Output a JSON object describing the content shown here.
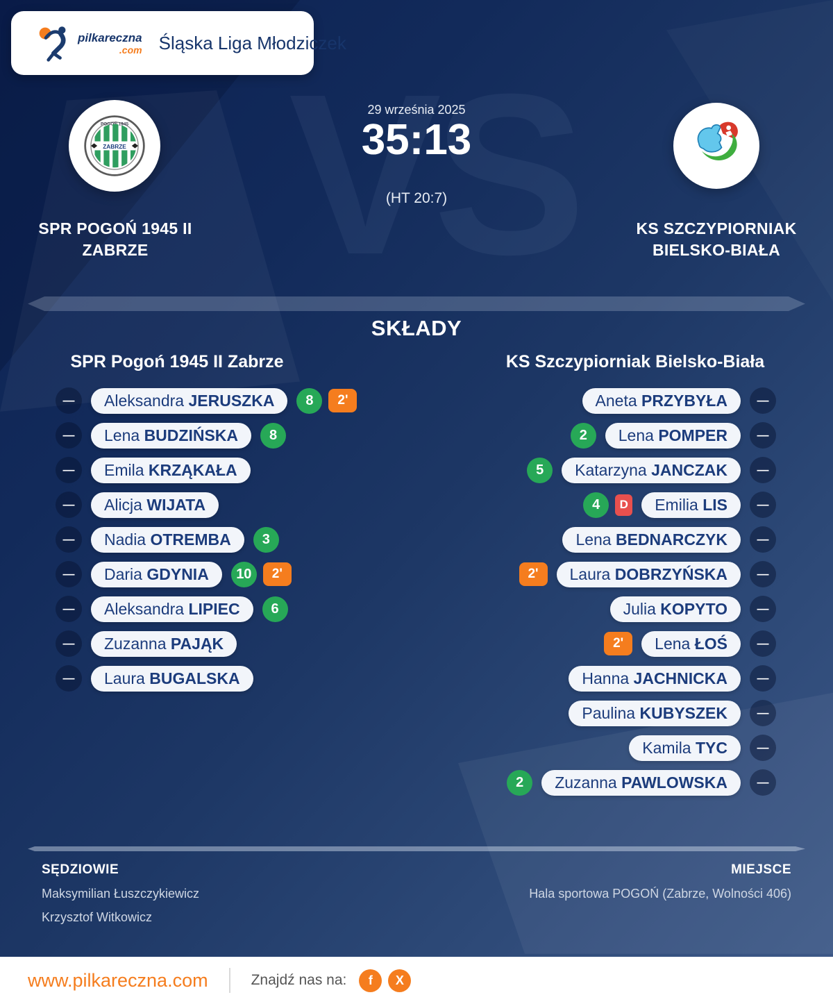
{
  "brand": {
    "name": "pilkareczna",
    "tld": ".com"
  },
  "header": {
    "league": "Śląska Liga Młodziczek"
  },
  "match": {
    "date": "29 września 2025",
    "score": "35:13",
    "halftime": "(HT 20:7)",
    "vs": "VS",
    "home": {
      "line1": "SPR POGOŃ 1945 II",
      "line2": "ZABRZE"
    },
    "away": {
      "line1": "KS SZCZYPIORNIAK",
      "line2": "BIELSKO-BIAŁA"
    }
  },
  "lineups": {
    "title": "SKŁADY",
    "home_header": "SPR Pogoń 1945 II Zabrze",
    "away_header": "KS Szczypiorniak Bielsko-Biała",
    "dash": "—",
    "home_players": [
      {
        "first": "Aleksandra",
        "last": "JERUSZKA",
        "badges": [
          {
            "type": "goals",
            "value": "8"
          },
          {
            "type": "susp",
            "value": "2'"
          }
        ]
      },
      {
        "first": "Lena",
        "last": "BUDZIŃSKA",
        "badges": [
          {
            "type": "goals",
            "value": "8"
          }
        ]
      },
      {
        "first": "Emila",
        "last": "KRZĄKAŁA",
        "badges": []
      },
      {
        "first": "Alicja",
        "last": "WIJATA",
        "badges": []
      },
      {
        "first": "Nadia",
        "last": "OTREMBA",
        "badges": [
          {
            "type": "goals",
            "value": "3"
          }
        ]
      },
      {
        "first": "Daria",
        "last": "GDYNIA",
        "badges": [
          {
            "type": "goals",
            "value": "10"
          },
          {
            "type": "susp",
            "value": "2'"
          }
        ]
      },
      {
        "first": "Aleksandra",
        "last": "LIPIEC",
        "badges": [
          {
            "type": "goals",
            "value": "6"
          }
        ]
      },
      {
        "first": "Zuzanna",
        "last": "PAJĄK",
        "badges": []
      },
      {
        "first": "Laura",
        "last": "BUGALSKA",
        "badges": []
      }
    ],
    "away_players": [
      {
        "first": "Aneta",
        "last": "PRZYBYŁA",
        "badges": []
      },
      {
        "first": "Lena",
        "last": "POMPER",
        "badges": [
          {
            "type": "goals",
            "value": "2"
          }
        ]
      },
      {
        "first": "Katarzyna",
        "last": "JANCZAK",
        "badges": [
          {
            "type": "goals",
            "value": "5"
          }
        ]
      },
      {
        "first": "Emilia",
        "last": "LIS",
        "badges": [
          {
            "type": "goals",
            "value": "4"
          },
          {
            "type": "disq",
            "value": "D"
          }
        ]
      },
      {
        "first": "Lena",
        "last": "BEDNARCZYK",
        "badges": []
      },
      {
        "first": "Laura",
        "last": "DOBRZYŃSKA",
        "badges": [
          {
            "type": "susp",
            "value": "2'"
          }
        ]
      },
      {
        "first": "Julia",
        "last": "KOPYTO",
        "badges": []
      },
      {
        "first": "Lena",
        "last": "ŁOŚ",
        "badges": [
          {
            "type": "susp",
            "value": "2'"
          }
        ]
      },
      {
        "first": "Hanna",
        "last": "JACHNICKA",
        "badges": []
      },
      {
        "first": "Paulina",
        "last": "KUBYSZEK",
        "badges": []
      },
      {
        "first": "Kamila",
        "last": "TYC",
        "badges": []
      },
      {
        "first": "Zuzanna",
        "last": "PAWLOWSKA",
        "badges": [
          {
            "type": "goals",
            "value": "2"
          }
        ]
      }
    ]
  },
  "officials": {
    "referees_label": "SĘDZIOWIE",
    "referees": [
      "Maksymilian Łuszczykiewicz",
      "Krzysztof Witkowicz"
    ],
    "venue_label": "MIEJSCE",
    "venue": "Hala sportowa POGOŃ (Zabrze, Wolności 406)"
  },
  "footer": {
    "website": "www.pilkareczna.com",
    "find_us": "Znajdź nas na:",
    "socials": [
      {
        "name": "facebook",
        "glyph": "f"
      },
      {
        "name": "x",
        "glyph": "X"
      }
    ]
  },
  "colors": {
    "accent_orange": "#f57d1e",
    "goals_green": "#27a857",
    "suspension_orange": "#f57d1e",
    "disqualification_red": "#e8504e",
    "navy_text": "#1c3c7c",
    "background_dark": "#0c2152",
    "background_light": "#3f5a89"
  }
}
